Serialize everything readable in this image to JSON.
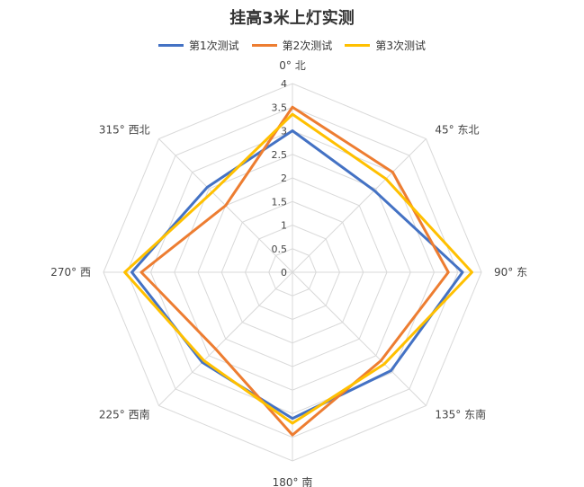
{
  "chart_data": {
    "type": "radar",
    "title": "挂高3米上灯实测",
    "axes": [
      "0° 北",
      "45° 东北",
      "90° 东",
      "135° 东南",
      "180° 南",
      "225° 西南",
      "270° 西",
      "315° 西北"
    ],
    "rticks": [
      "0",
      "0.5",
      "1",
      "1.5",
      "2",
      "2.5",
      "3",
      "3.5",
      "4"
    ],
    "rmax": 4,
    "series": [
      {
        "name": "第1次测试",
        "values": [
          3.0,
          2.45,
          3.6,
          2.95,
          3.1,
          2.7,
          3.4,
          2.55
        ]
      },
      {
        "name": "第2次测试",
        "values": [
          3.5,
          3.0,
          3.3,
          2.65,
          3.45,
          2.3,
          3.2,
          2.0
        ]
      },
      {
        "name": "第3次测试",
        "values": [
          3.35,
          2.8,
          3.8,
          2.75,
          3.2,
          2.65,
          3.55,
          2.4
        ]
      }
    ],
    "colors": [
      "#4472C4",
      "#ED7D31",
      "#FFC000"
    ],
    "grid": true,
    "legend_position": "top"
  }
}
